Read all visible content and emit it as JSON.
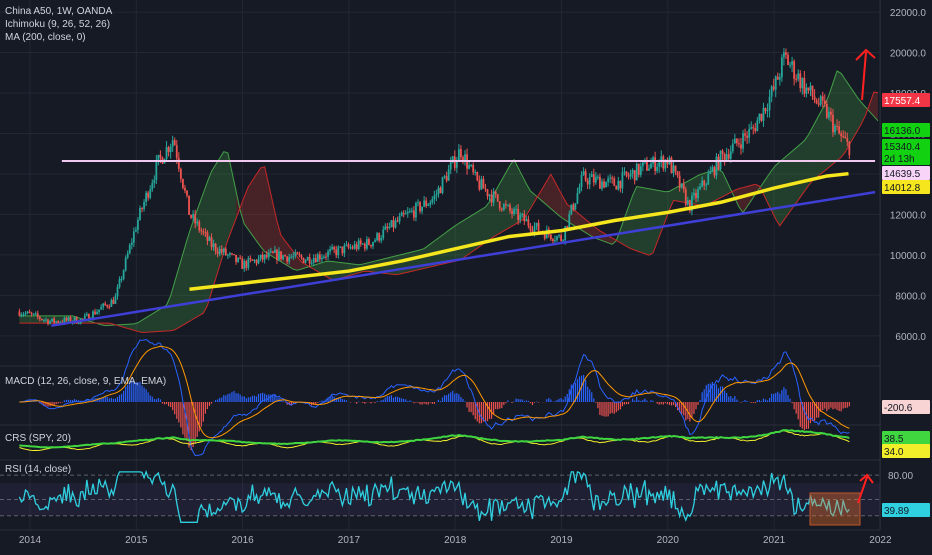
{
  "header": {
    "symbol": "China A50, 1W, OANDA",
    "ichimoku": "Ichimoku (9, 26, 52, 26)",
    "ma": "MA (200, close, 0)"
  },
  "panels": {
    "macd_label": "MACD (12, 26, close, 9, EMA, EMA)",
    "crs_label": "CRS (SPY, 20)",
    "rsi_label": "RSI (14, close)"
  },
  "colors": {
    "background": "#161a25",
    "grid": "#232733",
    "text": "#b2b5be",
    "up_candle": "#26a69a",
    "down_candle": "#ef5350",
    "ma200": "#f5e61d",
    "trendline": "#3f3fd8",
    "resistance": "#f0c8f0",
    "rsi": "#2fd0e0",
    "crs_green": "#3fd63f",
    "crs_yellow": "#f2ef2a",
    "arrow": "#ff2020"
  },
  "price_labels": {
    "last": {
      "text": "17557.4",
      "color": "#f23645"
    },
    "ichi_a": {
      "text": "16136.0",
      "color": "#11d111"
    },
    "close": {
      "text": "15340.4",
      "color": "#11d111"
    },
    "countdown": {
      "text": "2d 13h",
      "color": "#11d111"
    },
    "resistance": {
      "text": "14639.5",
      "color": "#f8d4f8"
    },
    "ma": {
      "text": "14012.8",
      "color": "#f5e61d"
    }
  },
  "indicator_values": {
    "macd": "-200.6",
    "crs_a": "38.5",
    "crs_b": "34.0",
    "rsi": "39.89",
    "rsi_level": "80.00"
  },
  "chart_data": {
    "type": "line",
    "title": "China A50, 1W, OANDA",
    "x_axis": [
      "2014",
      "2015",
      "2016",
      "2017",
      "2018",
      "2019",
      "2020",
      "2021",
      "2022"
    ],
    "y_axis": {
      "ticks": [
        6000,
        8000,
        10000,
        12000,
        14000,
        16000,
        18000,
        20000,
        22000
      ],
      "tick_labels": [
        "6000.0",
        "8000.0",
        "10000.0",
        "12000.0",
        "14000.0",
        "16000.0",
        "18000.0",
        "20000.0",
        "22000.0"
      ],
      "ylim": [
        5200,
        22300
      ]
    },
    "series": [
      {
        "x": [
          2013.9,
          2014.2,
          2014.5,
          2014.8,
          2015.0,
          2015.2,
          2015.35,
          2015.5,
          2015.7,
          2016.0,
          2016.3,
          2016.6,
          2016.9,
          2017.2,
          2017.5,
          2017.8,
          2018.05,
          2018.2,
          2018.5,
          2018.8,
          2019.0,
          2019.2,
          2019.5,
          2019.8,
          2020.0,
          2020.2,
          2020.5,
          2020.8,
          2021.0,
          2021.1,
          2021.3,
          2021.5,
          2021.6,
          2021.7
        ],
        "values": [
          7200,
          6700,
          6800,
          7800,
          11500,
          14500,
          15800,
          12000,
          10500,
          9500,
          10000,
          9800,
          10200,
          10600,
          11800,
          12800,
          15200,
          13600,
          12200,
          11200,
          10800,
          13800,
          13500,
          14400,
          14700,
          12400,
          14800,
          16200,
          18200,
          19800,
          18200,
          17000,
          16000,
          15340
        ]
      },
      {
        "name": "MA (200, close, 0)",
        "x": [
          2015.5,
          2016.0,
          2016.5,
          2017.0,
          2017.5,
          2018.0,
          2018.5,
          2019.0,
          2019.5,
          2020.0,
          2020.5,
          2021.0,
          2021.5,
          2021.7
        ],
        "values": [
          8300,
          8600,
          8900,
          9200,
          9700,
          10300,
          10900,
          11200,
          11700,
          12100,
          12600,
          13300,
          13900,
          14012.8
        ]
      },
      {
        "x": [
          2014.2,
          2021.95
        ],
        "values": [
          6500,
          13100
        ]
      },
      {
        "x": [
          2014.3,
          2021.95
        ],
        "values": [
          14639.5,
          14639.5
        ]
      }
    ],
    "sub_indicators": {
      "macd": {
        "label": "MACD (12, 26, close, 9, EMA, EMA)",
        "last": -200.6
      },
      "crs": {
        "label": "CRS (SPY, 20)",
        "last": [
          38.5,
          34.0
        ]
      },
      "rsi": {
        "label": "RSI (14, close)",
        "last": 39.89,
        "levels": [
          80
        ]
      }
    }
  }
}
